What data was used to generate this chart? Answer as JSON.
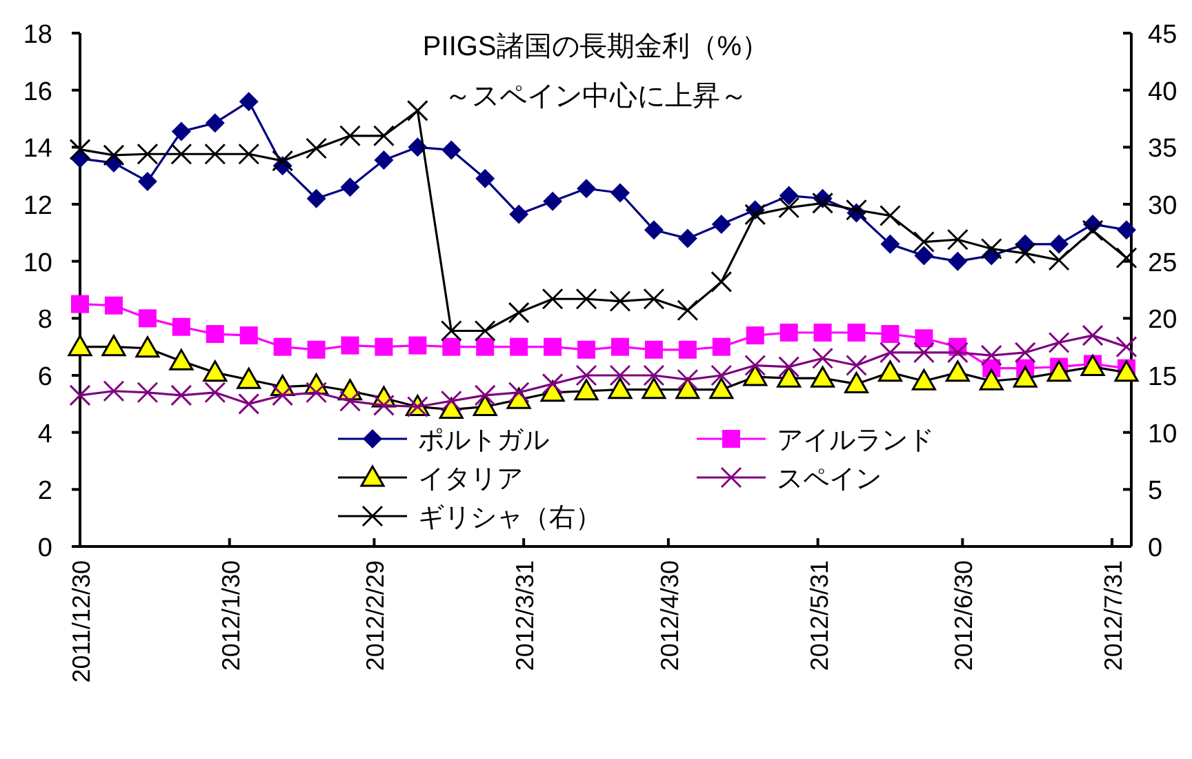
{
  "chart_data": {
    "type": "line",
    "title": "PIIGS諸国の長期金利（%）",
    "subtitle": "～スペイン中心に上昇～",
    "x": [
      "2011-12-30",
      "2012-01-06",
      "2012-01-13",
      "2012-01-20",
      "2012-01-27",
      "2012-02-03",
      "2012-02-10",
      "2012-02-17",
      "2012-02-24",
      "2012-03-02",
      "2012-03-09",
      "2012-03-16",
      "2012-03-23",
      "2012-03-30",
      "2012-04-06",
      "2012-04-13",
      "2012-04-20",
      "2012-04-27",
      "2012-05-04",
      "2012-05-11",
      "2012-05-18",
      "2012-05-25",
      "2012-06-01",
      "2012-06-08",
      "2012-06-15",
      "2012-06-22",
      "2012-06-29",
      "2012-07-06",
      "2012-07-13",
      "2012-07-20",
      "2012-07-27",
      "2012-08-03"
    ],
    "xlim": [
      "2011-12-30",
      "2012-08-04"
    ],
    "xticks": [
      {
        "value": "2011-12-30",
        "label": "2011/12/30"
      },
      {
        "value": "2012-01-30",
        "label": "2012/1/30"
      },
      {
        "value": "2012-02-29",
        "label": "2012/2/29"
      },
      {
        "value": "2012-03-31",
        "label": "2012/3/31"
      },
      {
        "value": "2012-04-30",
        "label": "2012/4/30"
      },
      {
        "value": "2012-05-31",
        "label": "2012/5/31"
      },
      {
        "value": "2012-06-30",
        "label": "2012/6/30"
      },
      {
        "value": "2012-07-31",
        "label": "2012/7/31"
      }
    ],
    "ylim": [
      0,
      18
    ],
    "yticks": [
      0,
      2,
      4,
      6,
      8,
      10,
      12,
      14,
      16,
      18
    ],
    "y2lim": [
      0,
      45
    ],
    "y2ticks": [
      0,
      5,
      10,
      15,
      20,
      25,
      30,
      35,
      40,
      45
    ],
    "legend": "bottom",
    "series": [
      {
        "name": "ポルトガル",
        "color": "#000080",
        "marker": "diamond",
        "values": [
          13.6,
          13.45,
          12.8,
          14.55,
          14.85,
          15.6,
          13.35,
          12.2,
          12.6,
          13.55,
          14.0,
          13.9,
          12.9,
          11.65,
          12.1,
          12.55,
          12.4,
          11.1,
          10.8,
          11.3,
          11.8,
          12.3,
          12.2,
          11.7,
          10.6,
          10.2,
          10.0,
          10.2,
          10.6,
          10.6,
          11.3,
          11.1
        ]
      },
      {
        "name": "アイルランド",
        "color": "#ff00ff",
        "marker": "square",
        "values": [
          8.5,
          8.45,
          8.0,
          7.7,
          7.45,
          7.4,
          7.0,
          6.9,
          7.05,
          7.0,
          7.05,
          7.0,
          7.0,
          7.0,
          7.0,
          6.9,
          7.0,
          6.9,
          6.9,
          7.0,
          7.4,
          7.5,
          7.5,
          7.5,
          7.45,
          7.3,
          7.0,
          6.25,
          6.25,
          6.3,
          6.4,
          6.25
        ]
      },
      {
        "name": "イタリア",
        "color": "#000000",
        "marker": "triangle",
        "values": [
          7.0,
          7.0,
          6.95,
          6.5,
          6.1,
          5.85,
          5.6,
          5.65,
          5.45,
          5.2,
          4.9,
          4.8,
          4.9,
          5.15,
          5.4,
          5.45,
          5.5,
          5.5,
          5.5,
          5.5,
          5.95,
          5.9,
          5.9,
          5.7,
          6.1,
          5.8,
          6.1,
          5.8,
          5.9,
          6.1,
          6.3,
          6.1
        ]
      },
      {
        "name": "スペイン",
        "color": "#800080",
        "marker": "cross",
        "values": [
          5.3,
          5.45,
          5.4,
          5.3,
          5.4,
          5.0,
          5.3,
          5.4,
          5.1,
          4.95,
          4.9,
          5.1,
          5.3,
          5.4,
          5.7,
          6.0,
          6.0,
          6.0,
          5.85,
          6.0,
          6.35,
          6.3,
          6.6,
          6.35,
          6.8,
          6.8,
          6.8,
          6.7,
          6.8,
          7.15,
          7.4,
          7.0
        ]
      },
      {
        "name": "ギリシャ（右）",
        "color": "#000000",
        "marker": "cross",
        "axis": "y2",
        "values": [
          34.8,
          34.3,
          34.4,
          34.4,
          34.4,
          34.4,
          33.8,
          34.9,
          36.0,
          36.0,
          38.2,
          18.9,
          18.9,
          20.5,
          21.7,
          21.7,
          21.5,
          21.7,
          20.7,
          23.2,
          29.1,
          29.7,
          30.1,
          29.5,
          29.0,
          26.7,
          26.9,
          26.1,
          25.7,
          25.1,
          27.7,
          25.3
        ]
      }
    ]
  }
}
